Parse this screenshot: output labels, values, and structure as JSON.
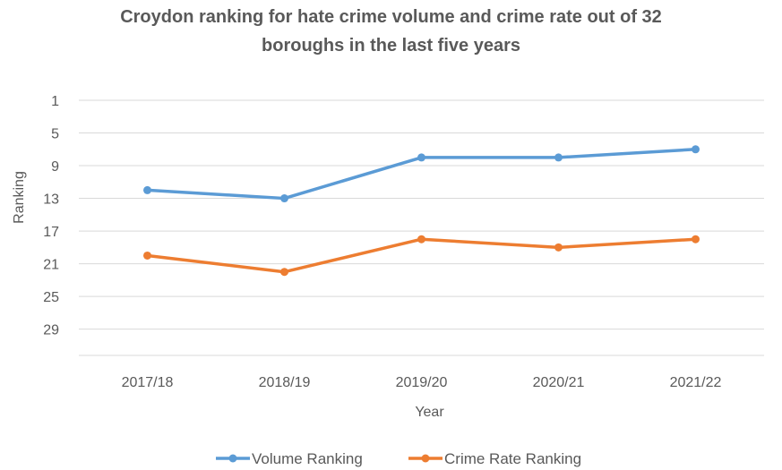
{
  "chart_data": {
    "type": "line",
    "title_lines": [
      "Croydon ranking for hate crime volume and crime rate out of 32",
      "boroughs in the last five years"
    ],
    "xlabel": "Year",
    "ylabel": "Ranking",
    "categories": [
      "2017/18",
      "2018/19",
      "2019/20",
      "2020/21",
      "2021/22"
    ],
    "y_axis": {
      "reversed": true,
      "range": [
        1,
        32
      ],
      "ticks": [
        1,
        5,
        9,
        13,
        17,
        21,
        25,
        29
      ]
    },
    "grid": "horizontal",
    "legend_position": "bottom",
    "series": [
      {
        "name": "Volume Ranking",
        "color": "#5B9BD5",
        "values": [
          12,
          13,
          8,
          8,
          7
        ]
      },
      {
        "name": "Crime Rate Ranking",
        "color": "#ED7D31",
        "values": [
          20,
          22,
          18,
          19,
          18
        ]
      }
    ]
  }
}
